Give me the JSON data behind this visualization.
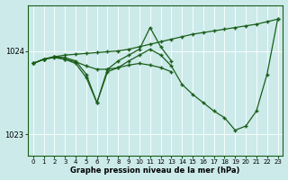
{
  "xlabel": "Graphe pression niveau de la mer (hPa)",
  "bg_color": "#cceaea",
  "line_color": "#1a5e1a",
  "ylim": [
    1022.75,
    1024.55
  ],
  "xlim": [
    -0.5,
    23.5
  ],
  "yticks": [
    1023,
    1024
  ],
  "xticks": [
    0,
    1,
    2,
    3,
    4,
    5,
    6,
    7,
    8,
    9,
    10,
    11,
    12,
    13,
    14,
    15,
    16,
    17,
    18,
    19,
    20,
    21,
    22,
    23
  ],
  "series": [
    {
      "x": [
        0,
        1,
        2,
        3,
        4,
        5,
        6,
        7,
        8,
        9,
        10,
        11,
        12,
        13,
        14,
        15,
        16,
        17,
        18,
        19,
        20,
        21,
        22,
        23
      ],
      "y": [
        1023.85,
        1023.9,
        1023.93,
        1023.95,
        1023.96,
        1023.97,
        1023.98,
        1023.99,
        1024.0,
        1024.02,
        1024.05,
        1024.08,
        1024.11,
        1024.14,
        1024.17,
        1024.2,
        1024.22,
        1024.24,
        1024.26,
        1024.28,
        1024.3,
        1024.32,
        1024.35,
        1024.38
      ]
    },
    {
      "x": [
        0,
        1,
        2,
        3,
        4,
        5,
        6,
        7,
        8,
        9,
        10,
        11,
        12,
        13
      ],
      "y": [
        1023.85,
        1023.9,
        1023.93,
        1023.92,
        1023.88,
        1023.72,
        1023.38,
        1023.78,
        1023.88,
        1023.95,
        1024.02,
        1024.28,
        1024.05,
        1023.88
      ]
    },
    {
      "x": [
        0,
        1,
        2,
        3,
        4,
        5,
        6,
        7,
        8,
        9,
        10,
        11,
        12,
        13
      ],
      "y": [
        1023.85,
        1023.9,
        1023.93,
        1023.9,
        1023.87,
        1023.82,
        1023.78,
        1023.78,
        1023.8,
        1023.83,
        1023.85,
        1023.83,
        1023.8,
        1023.75
      ]
    },
    {
      "x": [
        0,
        1,
        2,
        3,
        4,
        5,
        6,
        7,
        8,
        9,
        10,
        11,
        12,
        13,
        14,
        15,
        16,
        17,
        18,
        19,
        20,
        21,
        22,
        23
      ],
      "y": [
        1023.85,
        1023.9,
        1023.92,
        1023.9,
        1023.85,
        1023.68,
        1023.38,
        1023.75,
        1023.8,
        1023.88,
        1023.95,
        1024.02,
        1023.95,
        1023.82,
        1023.6,
        1023.48,
        1023.38,
        1023.28,
        1023.2,
        1023.05,
        1023.1,
        1023.28,
        1023.72,
        1024.38
      ]
    }
  ]
}
